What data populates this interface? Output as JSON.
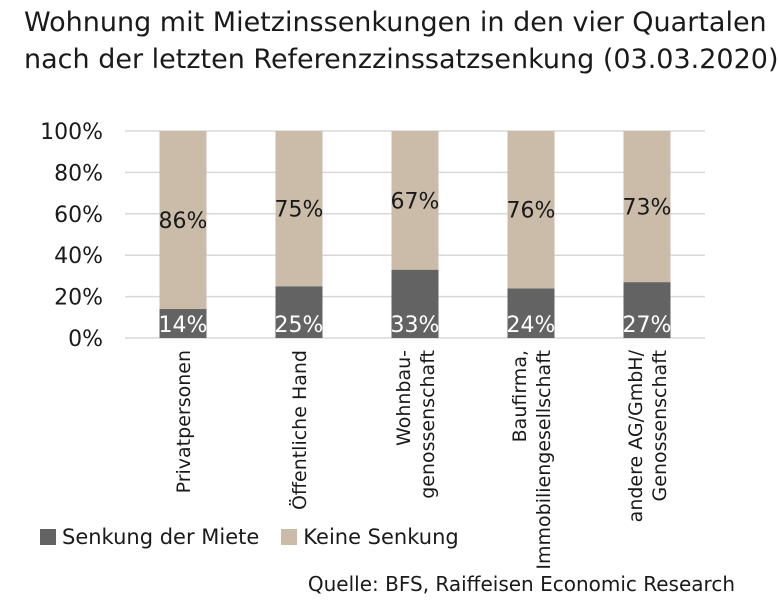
{
  "title_lines": [
    "Wohnung mit Mietzinssenkungen in den vier Quartalen",
    "nach der letzten Referenzzinssatzsenkung (03.03.2020)"
  ],
  "source": "Quelle: BFS, Raiffeisen Economic Research",
  "colors": {
    "senkung": "#636363",
    "keine": "#cbbba9",
    "grid": "#d9d9d9",
    "label_dark": "#1a1a1a",
    "label_light": "#ffffff"
  },
  "chart_data": {
    "type": "bar",
    "stacked": true,
    "categories": [
      [
        "Privatpersonen"
      ],
      [
        "Öffentliche Hand"
      ],
      [
        "Wohnbau-",
        "genossenschaft"
      ],
      [
        "Baufirma,",
        "Immobiliengesellschaft"
      ],
      [
        "andere AG/GmbH/",
        "Genossenschaft"
      ]
    ],
    "series": [
      {
        "name": "Senkung der Miete",
        "values": [
          14,
          25,
          33,
          24,
          27
        ],
        "labels": [
          "14%",
          "25%",
          "33%",
          "24%",
          "27%"
        ]
      },
      {
        "name": "Keine Senkung",
        "values": [
          86,
          75,
          67,
          76,
          73
        ],
        "labels": [
          "86%",
          "75%",
          "67%",
          "76%",
          "73%"
        ]
      }
    ],
    "ylim": [
      0,
      100
    ],
    "yticks": [
      0,
      20,
      40,
      60,
      80,
      100
    ],
    "ytick_labels": [
      "0%",
      "20%",
      "40%",
      "60%",
      "80%",
      "100%"
    ],
    "grid": true,
    "legend": "bottom-left"
  }
}
